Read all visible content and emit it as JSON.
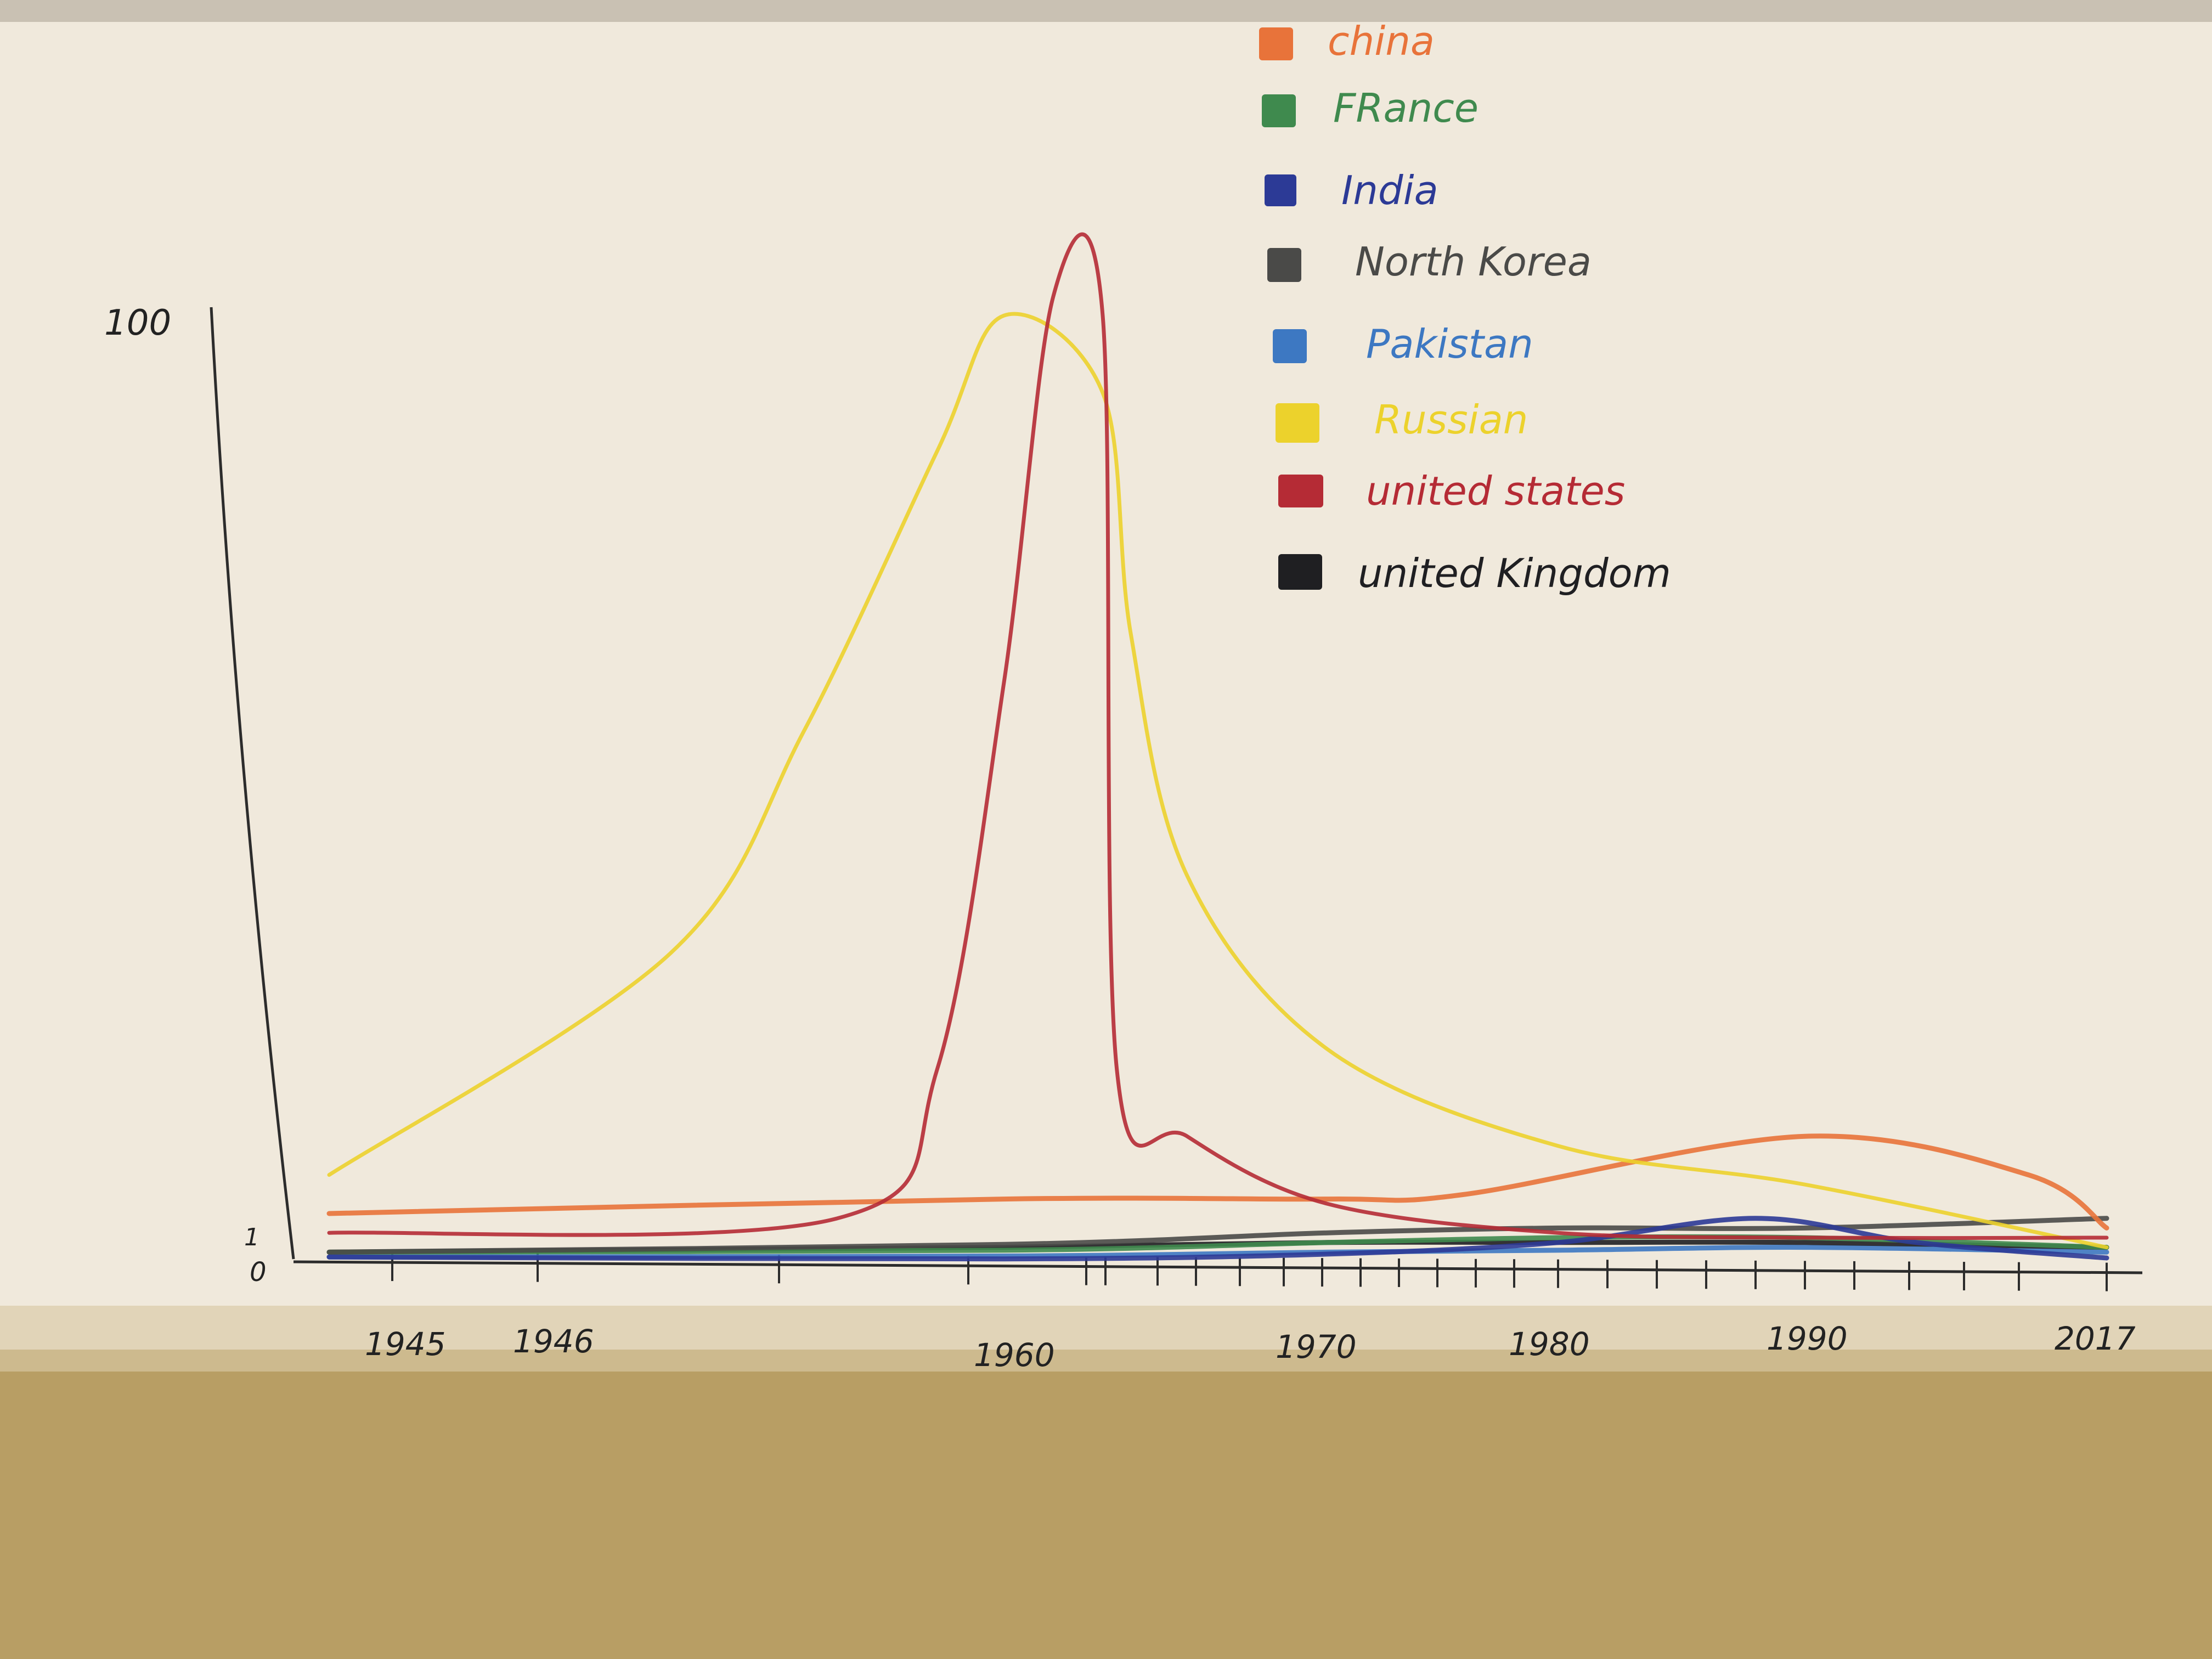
{
  "chart_data": {
    "type": "line",
    "title": "",
    "xlabel": "",
    "ylabel": "",
    "y_ticks": [
      "100",
      "1",
      "0"
    ],
    "x_ticks": [
      "1945",
      "1946",
      "1960",
      "1970",
      "1980",
      "1990",
      "2017"
    ],
    "grid": false,
    "legend_position": "top-right",
    "series": [
      {
        "name": "china",
        "color": "#e8733a",
        "points": [
          [
            1945,
            5
          ],
          [
            1960,
            6.5
          ],
          [
            1970,
            6.5
          ],
          [
            1976,
            7
          ],
          [
            1990,
            13
          ],
          [
            2010,
            9
          ],
          [
            2017,
            3.5
          ]
        ]
      },
      {
        "name": "FRance",
        "color": "#3f8a4e",
        "points": [
          [
            1945,
            1
          ],
          [
            1960,
            1.2
          ],
          [
            1970,
            2
          ],
          [
            1980,
            2.5
          ],
          [
            1990,
            2.5
          ],
          [
            2017,
            1.5
          ]
        ]
      },
      {
        "name": "India",
        "color": "#2c3a96",
        "points": [
          [
            1945,
            0.5
          ],
          [
            1960,
            0.3
          ],
          [
            1970,
            0.8
          ],
          [
            1980,
            2
          ],
          [
            1988,
            4.5
          ],
          [
            2000,
            2
          ],
          [
            2017,
            0.4
          ]
        ]
      },
      {
        "name": "North Korea",
        "color": "#4a4a48",
        "points": [
          [
            1945,
            1
          ],
          [
            1960,
            1.8
          ],
          [
            1970,
            3
          ],
          [
            1980,
            3.5
          ],
          [
            1990,
            3.5
          ],
          [
            2017,
            4.5
          ]
        ]
      },
      {
        "name": "Pakistan",
        "color": "#3d78c2",
        "points": [
          [
            1945,
            0.5
          ],
          [
            1960,
            0.6
          ],
          [
            1970,
            1
          ],
          [
            1980,
            1.2
          ],
          [
            1990,
            1.5
          ],
          [
            2017,
            1
          ]
        ]
      },
      {
        "name": "Russian",
        "color": "#ecd22c",
        "points": [
          [
            1945,
            9
          ],
          [
            1950,
            32
          ],
          [
            1954,
            55
          ],
          [
            1958,
            84
          ],
          [
            1960,
            98
          ],
          [
            1962,
            90
          ],
          [
            1963,
            65
          ],
          [
            1965,
            40
          ],
          [
            1970,
            22
          ],
          [
            1980,
            12
          ],
          [
            1990,
            8
          ],
          [
            2017,
            1.5
          ]
        ]
      },
      {
        "name": "united states",
        "color": "#b52b35",
        "points": [
          [
            1945,
            3
          ],
          [
            1955,
            4.5
          ],
          [
            1958,
            20
          ],
          [
            1960,
            60
          ],
          [
            1961,
            100
          ],
          [
            1962,
            98
          ],
          [
            1962.5,
            20
          ],
          [
            1965,
            13
          ],
          [
            1970,
            6
          ],
          [
            1980,
            3
          ],
          [
            1990,
            2.5
          ],
          [
            2017,
            2.5
          ]
        ]
      },
      {
        "name": "united Kingdom",
        "color": "#1f1f22",
        "points": [
          [
            1945,
            1
          ],
          [
            1960,
            1.5
          ],
          [
            1970,
            2
          ],
          [
            1980,
            2
          ],
          [
            1990,
            2
          ],
          [
            2017,
            1.5
          ]
        ]
      }
    ]
  }
}
